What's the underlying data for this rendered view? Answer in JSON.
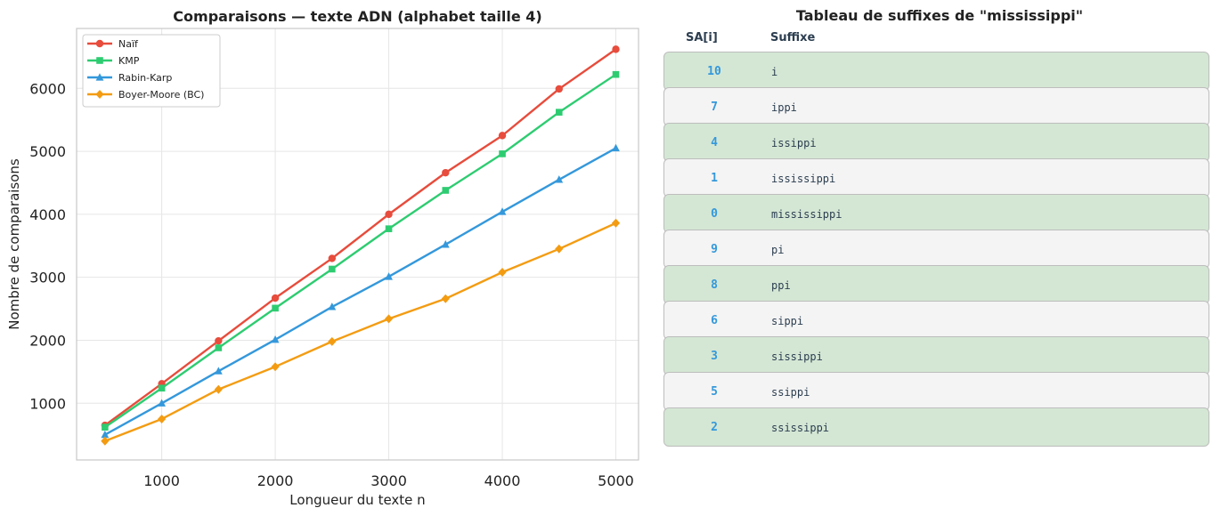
{
  "chart_data": {
    "type": "line",
    "title": "Comparaisons — texte ADN (alphabet taille 4)",
    "xlabel": "Longueur du texte n",
    "ylabel": "Nombre de comparaisons",
    "xlim": [
      250,
      5200
    ],
    "ylim": [
      100,
      6950
    ],
    "xticks": [
      1000,
      2000,
      3000,
      4000,
      5000
    ],
    "yticks": [
      1000,
      2000,
      3000,
      4000,
      5000,
      6000
    ],
    "grid": true,
    "legend_position": "top-left",
    "x": [
      500,
      1000,
      1500,
      2000,
      2500,
      3000,
      3500,
      4000,
      4500,
      5000
    ],
    "series": [
      {
        "name": "Naïf",
        "color": "#e74c3c",
        "marker": "circle",
        "values": [
          650,
          1310,
          1990,
          2670,
          3300,
          4000,
          4660,
          5250,
          5990,
          6620
        ]
      },
      {
        "name": "KMP",
        "color": "#2ecc71",
        "marker": "square",
        "values": [
          620,
          1240,
          1880,
          2510,
          3130,
          3770,
          4380,
          4960,
          5620,
          6220
        ]
      },
      {
        "name": "Rabin-Karp",
        "color": "#3498db",
        "marker": "triangle",
        "values": [
          500,
          1000,
          1510,
          2010,
          2530,
          3010,
          3520,
          4040,
          4550,
          5050
        ]
      },
      {
        "name": "Boyer-Moore (BC)",
        "color": "#f39c12",
        "marker": "diamond",
        "values": [
          400,
          750,
          1220,
          1580,
          1980,
          2340,
          2660,
          3080,
          3450,
          3860
        ]
      }
    ]
  },
  "suffix_table": {
    "title": "Tableau de suffixes de \"mississippi\"",
    "col_sa": "SA[i]",
    "col_suffix": "Suffixe",
    "rows": [
      {
        "sa": "10",
        "suffix": "i"
      },
      {
        "sa": "7",
        "suffix": "ippi"
      },
      {
        "sa": "4",
        "suffix": "issippi"
      },
      {
        "sa": "1",
        "suffix": "ississippi"
      },
      {
        "sa": "0",
        "suffix": "mississippi"
      },
      {
        "sa": "9",
        "suffix": "pi"
      },
      {
        "sa": "8",
        "suffix": "ppi"
      },
      {
        "sa": "6",
        "suffix": "sippi"
      },
      {
        "sa": "3",
        "suffix": "sissippi"
      },
      {
        "sa": "5",
        "suffix": "ssippi"
      },
      {
        "sa": "2",
        "suffix": "ssissippi"
      }
    ]
  }
}
